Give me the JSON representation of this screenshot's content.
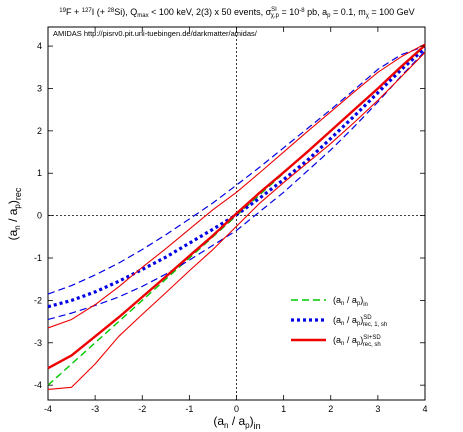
{
  "chart_data": {
    "type": "line",
    "title": "¹⁹F + ¹²⁷I (+ ²⁸Si), Q_max < 100 keV, 2(3) × 50 events, σ^SI_χp = 10⁻⁸ pb, a_p = 0.1, m_χ = 100 GeV",
    "title_parts": {
      "f_mass": "19",
      "f": "F + ",
      "i_mass": "127",
      "i": "I (+ ",
      "si_mass": "28",
      "si": "Si), Q",
      "qmax_sub": "max",
      "rest1": " < 100 keV, 2(3) x 50 events, σ",
      "sigma_sub": "χ,p",
      "sigma_sup": "SI",
      "rest2": " = 10",
      "exp": "-8",
      "rest3": " pb, a",
      "ap_sub": "p",
      "rest4": " = 0.1, m",
      "m_sub": "χ",
      "rest5": " = 100 GeV"
    },
    "annotation": "AMIDAS   http://pisrv0.pit.uni-tuebingen.de/darkmatter/amidas/",
    "xlabel": "(a_n / a_p)_in",
    "ylabel": "(a_n / a_p)_rec",
    "xlabel_parts": {
      "main": "(a",
      "n": "n",
      "mid": " / a",
      "p": "p",
      "close": ")",
      "sub": "in"
    },
    "ylabel_parts": {
      "main": "(a",
      "n": "n",
      "mid": " / a",
      "p": "p",
      "close": ")",
      "sub": "rec"
    },
    "xlim": [
      -4,
      4
    ],
    "ylim": [
      -4.35,
      4.45
    ],
    "xticks": [
      -4,
      -3,
      -2,
      -1,
      0,
      1,
      2,
      3,
      4
    ],
    "yticks": [
      -4,
      -3,
      -2,
      -1,
      0,
      1,
      2,
      3,
      4
    ],
    "reference_lines": {
      "x": 0,
      "y": 0,
      "style": "dotted"
    },
    "grid": false,
    "legend_position": "bottom-right",
    "series": [
      {
        "name": "(a_n / a_p)_in",
        "legend_parts": {
          "main": "(a",
          "n": "n",
          "mid": " / a",
          "p": "p",
          "close": ")",
          "sub": "in",
          "sup": ""
        },
        "color": "#00c800",
        "style": "dashed",
        "width": 1.4,
        "x": [
          -4,
          4
        ],
        "y": [
          -4,
          4
        ]
      },
      {
        "name": "(a_n / a_p)^SD_rec,1,sh",
        "legend_parts": {
          "main": "(a",
          "n": "n",
          "mid": " / a",
          "p": "p",
          "close": ")",
          "sub": "rec, 1, sh",
          "sup": "SD"
        },
        "color": "#0000e6",
        "style": "dotted",
        "width": 3.2,
        "x": [
          -4,
          -3.5,
          -3,
          -2.5,
          -2,
          -1.5,
          -1,
          -0.5,
          0,
          0.5,
          1,
          1.5,
          2,
          2.5,
          3,
          3.5,
          4
        ],
        "y": [
          -2.15,
          -2.0,
          -1.8,
          -1.55,
          -1.27,
          -0.98,
          -0.65,
          -0.32,
          0.02,
          0.42,
          0.85,
          1.3,
          1.82,
          2.35,
          2.9,
          3.45,
          3.95
        ]
      },
      {
        "name": "SD upper bound",
        "color": "#0000e6",
        "style": "dashed",
        "width": 1.2,
        "legend": false,
        "x": [
          -4,
          -3.5,
          -3,
          -2.5,
          -2,
          -1.5,
          -1,
          -0.5,
          0,
          0.5,
          1,
          1.5,
          2,
          2.5,
          3,
          3.5,
          4
        ],
        "y": [
          -1.85,
          -1.65,
          -1.4,
          -1.12,
          -0.8,
          -0.45,
          -0.08,
          0.3,
          0.72,
          1.15,
          1.6,
          2.05,
          2.5,
          2.97,
          3.45,
          3.8,
          4.0
        ]
      },
      {
        "name": "SD lower bound",
        "color": "#0000e6",
        "style": "dashed",
        "width": 1.2,
        "legend": false,
        "x": [
          -4,
          -3.5,
          -3,
          -2.5,
          -2,
          -1.5,
          -1,
          -0.5,
          0,
          0.5,
          1,
          1.5,
          2,
          2.5,
          3,
          3.5,
          4
        ],
        "y": [
          -2.45,
          -2.3,
          -2.12,
          -1.92,
          -1.67,
          -1.38,
          -1.05,
          -0.7,
          -0.35,
          0.1,
          0.55,
          1.05,
          1.55,
          2.1,
          2.68,
          3.3,
          3.88
        ]
      },
      {
        "name": "(a_n / a_p)^SI+SD_rec,sh",
        "legend_parts": {
          "main": "(a",
          "n": "n",
          "mid": " / a",
          "p": "p",
          "close": ")",
          "sub": "rec, sh",
          "sup": "SI+SD"
        },
        "color": "#ee0000",
        "style": "solid",
        "width": 2.4,
        "x": [
          -4,
          -3.5,
          -3,
          -2.5,
          -2,
          -1.5,
          -1,
          -0.5,
          0,
          0.5,
          1,
          1.5,
          2,
          2.5,
          3,
          3.5,
          4
        ],
        "y": [
          -3.6,
          -3.3,
          -2.85,
          -2.4,
          -1.92,
          -1.44,
          -0.95,
          -0.47,
          0.05,
          0.55,
          1.02,
          1.5,
          2.0,
          2.5,
          3.0,
          3.52,
          4.02
        ]
      },
      {
        "name": "SI+SD upper bound",
        "color": "#ee0000",
        "style": "solid",
        "width": 1.1,
        "legend": false,
        "x": [
          -4,
          -3.5,
          -3,
          -2.5,
          -2,
          -1.5,
          -1,
          -0.5,
          0,
          0.5,
          1,
          1.5,
          2,
          2.5,
          3,
          3.5,
          4
        ],
        "y": [
          -2.65,
          -2.45,
          -2.1,
          -1.68,
          -1.22,
          -0.78,
          -0.32,
          0.14,
          0.55,
          1.02,
          1.5,
          1.98,
          2.45,
          2.92,
          3.38,
          3.75,
          4.05
        ]
      },
      {
        "name": "SI+SD lower bound",
        "color": "#ee0000",
        "style": "solid",
        "width": 1.1,
        "legend": false,
        "x": [
          -4,
          -3.5,
          -3,
          -2.5,
          -2,
          -1.5,
          -1,
          -0.5,
          0,
          0.5,
          1,
          1.5,
          2,
          2.5,
          3,
          3.5,
          4
        ],
        "y": [
          -4.1,
          -4.05,
          -3.5,
          -2.85,
          -2.33,
          -1.82,
          -1.3,
          -0.8,
          -0.25,
          0.3,
          0.78,
          1.24,
          1.7,
          2.2,
          2.72,
          3.28,
          3.85
        ]
      }
    ]
  }
}
